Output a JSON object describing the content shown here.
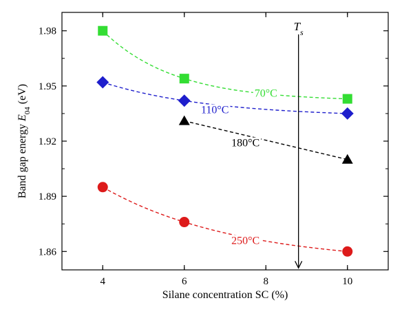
{
  "chart_data": {
    "type": "scatter",
    "xlabel": "Silane concentration SC (%)",
    "ylabel_prefix": "Band gap energy ",
    "ylabel_symbol": "E",
    "ylabel_subscript": "04",
    "ylabel_unit": " (eV)",
    "xlim": [
      3,
      11
    ],
    "ylim": [
      1.85,
      1.99
    ],
    "x_ticks": [
      4,
      6,
      8,
      10
    ],
    "y_ticks": [
      1.86,
      1.89,
      1.92,
      1.95,
      1.98
    ],
    "y_tick_labels": [
      "1.86",
      "1.89",
      "1.92",
      "1.95",
      "1.98"
    ],
    "grid": false,
    "series": [
      {
        "name": "70°C",
        "marker": "square",
        "color": "#33dd33",
        "x": [
          4,
          6,
          10
        ],
        "y": [
          1.98,
          1.954,
          1.943
        ],
        "label_pos": {
          "x": 8.0,
          "y": 1.946
        }
      },
      {
        "name": "110°C",
        "marker": "diamond",
        "color": "#1e1ecc",
        "x": [
          4,
          6,
          10
        ],
        "y": [
          1.952,
          1.942,
          1.935
        ],
        "label_pos": {
          "x": 6.75,
          "y": 1.937
        }
      },
      {
        "name": "180°C",
        "marker": "triangle",
        "color": "#000000",
        "x": [
          6,
          10
        ],
        "y": [
          1.931,
          1.91
        ],
        "label_pos": {
          "x": 7.5,
          "y": 1.919
        }
      },
      {
        "name": "250°C",
        "marker": "circle",
        "color": "#dd1a1a",
        "x": [
          4,
          6,
          10
        ],
        "y": [
          1.895,
          1.876,
          1.86
        ],
        "label_pos": {
          "x": 7.5,
          "y": 1.866
        }
      }
    ],
    "annotation": {
      "symbol": "T",
      "subscript": "s",
      "x": 8.8,
      "y_from": 1.978,
      "y_to": 1.851
    }
  }
}
